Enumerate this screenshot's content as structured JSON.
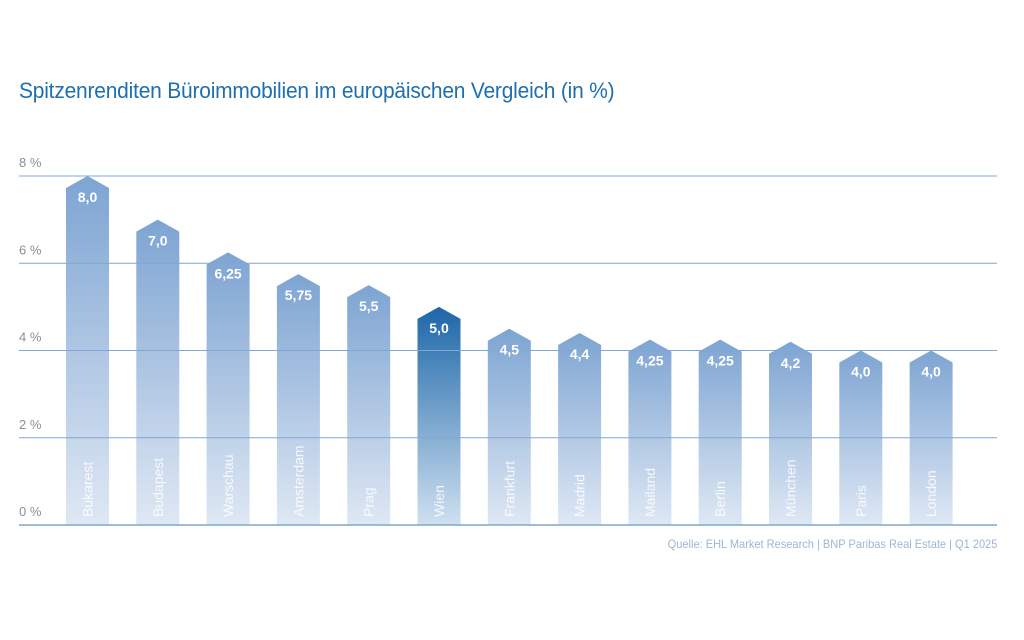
{
  "title": "Spitzenrenditen Büroimmobilien im europäischen Vergleich (in %)",
  "source": "Quelle: EHL Market Research | BNP Paribas Real Estate | Q1 2025",
  "colors": {
    "title": "#1f6fae",
    "bar_top": "#7da4d2",
    "bar_bottom": "#dfe8f4",
    "highlight_top": "#1d66a8",
    "highlight_bottom": "#cfe0f0",
    "grid": "#7fa7d4",
    "tick_text": "#8a8f96",
    "source_text": "#9fb6d2"
  },
  "chart_data": {
    "type": "bar",
    "title": "Spitzenrenditen Büroimmobilien im europäischen Vergleich (in %)",
    "xlabel": "",
    "ylabel": "",
    "ylim": [
      0,
      8
    ],
    "yticks": [
      0,
      2,
      4,
      6,
      8
    ],
    "ytick_labels": [
      "0 %",
      "2 %",
      "4 %",
      "6 %",
      "8 %"
    ],
    "grid": true,
    "legend": "none",
    "categories": [
      "Bukarest",
      "Budapest",
      "Warschau",
      "Amsterdam",
      "Prag",
      "Wien",
      "Frankfurt",
      "Madrid",
      "Mailand",
      "Berlin",
      "München",
      "Paris",
      "London"
    ],
    "values": [
      8.0,
      7.0,
      6.25,
      5.75,
      5.5,
      5.0,
      4.5,
      4.4,
      4.25,
      4.25,
      4.2,
      4.0,
      4.0
    ],
    "value_labels": [
      "8,0",
      "7,0",
      "6,25",
      "5,75",
      "5,5",
      "5,0",
      "4,5",
      "4,4",
      "4,25",
      "4,25",
      "4,2",
      "4,0",
      "4,0"
    ],
    "highlight": "Wien",
    "source": "Quelle: EHL Market Research | BNP Paribas Real Estate | Q1 2025"
  }
}
